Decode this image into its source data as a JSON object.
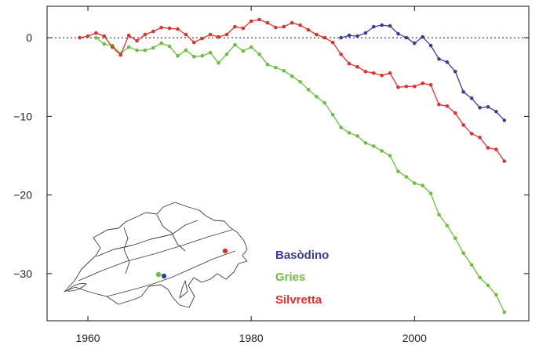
{
  "chart_data": {
    "type": "line",
    "title": "",
    "xlabel": "",
    "ylabel": "",
    "xlim": [
      1955,
      2014
    ],
    "ylim": [
      -36,
      4
    ],
    "xticks": [
      1960,
      1980,
      2000
    ],
    "yticks": [
      0,
      -10,
      -20,
      -30
    ],
    "grid": false,
    "zero_line": "dotted",
    "legend_position": "bottom-right",
    "inset": "outline map of Switzerland with coloured dots marking glacier locations",
    "series": [
      {
        "name": "Basòdino",
        "color": "#3a3d9c",
        "x": [
          1991,
          1992,
          1993,
          1994,
          1995,
          1996,
          1997,
          1998,
          1999,
          2000,
          2001,
          2002,
          2003,
          2004,
          2005,
          2006,
          2007,
          2008,
          2009,
          2010,
          2011
        ],
        "y": [
          0,
          0.3,
          0.2,
          0.6,
          1.4,
          1.6,
          1.5,
          0.5,
          0,
          -0.7,
          0.1,
          -1,
          -2.7,
          -3.1,
          -4.3,
          -6.9,
          -7.7,
          -8.9,
          -8.8,
          -9.4,
          -10.5
        ]
      },
      {
        "name": "Gries",
        "color": "#6cbf3c",
        "x": [
          1961,
          1962,
          1963,
          1964,
          1965,
          1966,
          1967,
          1968,
          1969,
          1970,
          1971,
          1972,
          1973,
          1974,
          1975,
          1976,
          1977,
          1978,
          1979,
          1980,
          1981,
          1982,
          1983,
          1984,
          1985,
          1986,
          1987,
          1988,
          1989,
          1990,
          1991,
          1992,
          1993,
          1994,
          1995,
          1996,
          1997,
          1998,
          1999,
          2000,
          2001,
          2002,
          2003,
          2004,
          2005,
          2006,
          2007,
          2008,
          2009,
          2010,
          2011
        ],
        "y": [
          0,
          -0.8,
          -1,
          -2,
          -1.2,
          -1.6,
          -1.6,
          -1.3,
          -0.7,
          -1.1,
          -2.3,
          -1.6,
          -2.4,
          -2.3,
          -1.9,
          -3.2,
          -2.1,
          -0.9,
          -1.7,
          -1.2,
          -2.1,
          -3.4,
          -3.8,
          -4.2,
          -4.9,
          -5.6,
          -6.6,
          -7.5,
          -8.3,
          -9.8,
          -11.4,
          -12.1,
          -12.5,
          -13.4,
          -13.8,
          -14.4,
          -15,
          -17,
          -17.7,
          -18.5,
          -18.8,
          -19.8,
          -22.5,
          -23.9,
          -25.5,
          -27.4,
          -28.9,
          -30.5,
          -31.5,
          -32.7,
          -34.9
        ]
      },
      {
        "name": "Silvretta",
        "color": "#e0302e",
        "x": [
          1959,
          1960,
          1961,
          1962,
          1963,
          1964,
          1965,
          1966,
          1967,
          1968,
          1969,
          1970,
          1971,
          1972,
          1973,
          1974,
          1975,
          1976,
          1977,
          1978,
          1979,
          1980,
          1981,
          1982,
          1983,
          1984,
          1985,
          1986,
          1987,
          1988,
          1989,
          1990,
          1991,
          1992,
          1993,
          1994,
          1995,
          1996,
          1997,
          1998,
          1999,
          2000,
          2001,
          2002,
          2003,
          2004,
          2005,
          2006,
          2007,
          2008,
          2009,
          2010,
          2011
        ],
        "y": [
          0,
          0.2,
          0.6,
          0.2,
          -1.2,
          -2.2,
          0.3,
          -0.4,
          0.4,
          0.8,
          1.3,
          1.2,
          1.1,
          0.4,
          -0.6,
          -0.1,
          0.4,
          0.1,
          0.4,
          1.4,
          1.2,
          2.1,
          2.3,
          1.9,
          1.3,
          1.4,
          1.9,
          1.6,
          1,
          0.4,
          0,
          -0.6,
          -2.1,
          -3.3,
          -3.7,
          -4.3,
          -4.5,
          -4.8,
          -4.5,
          -6.3,
          -6.2,
          -6.2,
          -5.8,
          -6,
          -8.5,
          -8.7,
          -9.6,
          -11.1,
          -12.2,
          -12.7,
          -14,
          -14.2,
          -15.7
        ]
      }
    ]
  }
}
